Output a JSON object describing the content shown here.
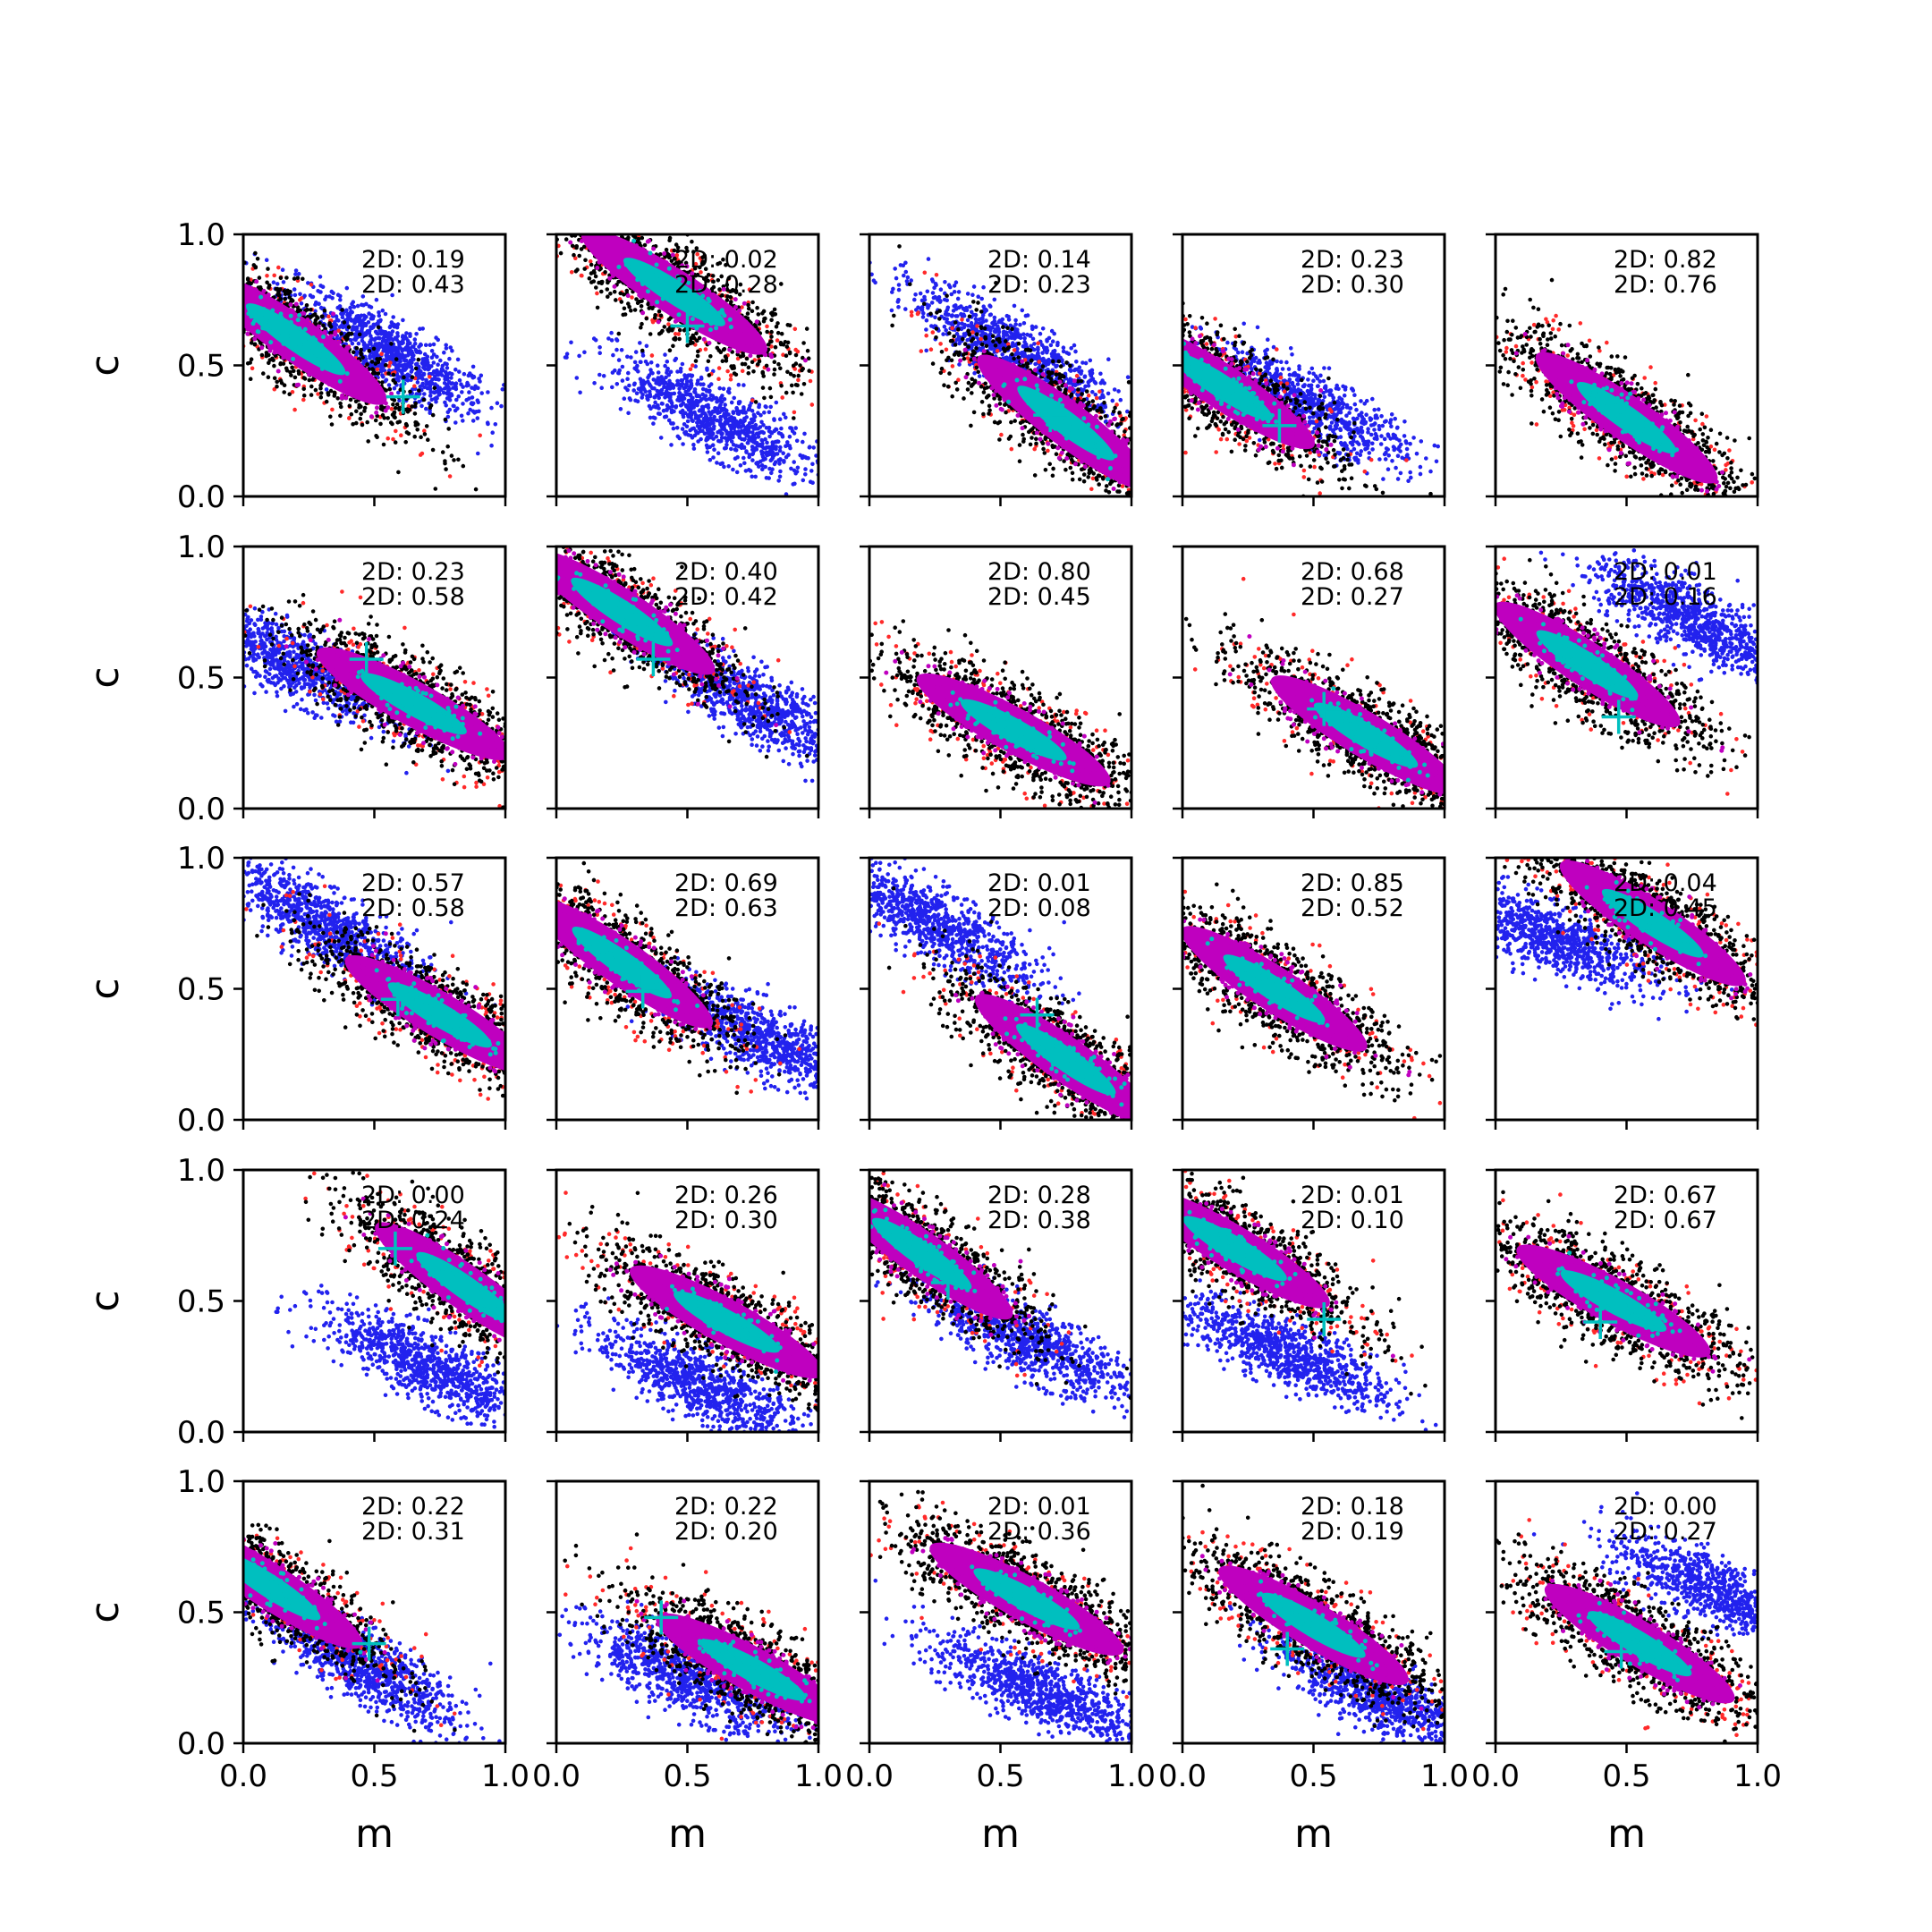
{
  "chart_data": {
    "type": "scatter",
    "layout": {
      "rows": 5,
      "cols": 5
    },
    "xlabel": "m",
    "ylabel": "c",
    "xlim": [
      0.0,
      1.0
    ],
    "ylim": [
      0.0,
      1.0
    ],
    "xticks": [
      "0.0",
      "0.5",
      "1.0"
    ],
    "yticks": [
      "0.0",
      "0.5",
      "1.0"
    ],
    "grid": false,
    "colors": {
      "outer": "#ff2a2a",
      "band": "#000000",
      "mid": "#bf00bf",
      "core": "#00bfbf",
      "alt": "#2222ee",
      "marker": "#00bfbf"
    },
    "panels": [
      {
        "row": 0,
        "col": 0,
        "annot": [
          "2D: 0.19",
          "2D: 0.43"
        ],
        "main": {
          "m": 0.2,
          "c": 0.6,
          "slope": -0.7
        },
        "alt": {
          "m": 0.55,
          "c": 0.55,
          "slope": -0.6
        },
        "marker": [
          0.61,
          0.38
        ]
      },
      {
        "row": 0,
        "col": 1,
        "annot": [
          "2D: 0.02",
          "2D: 0.28"
        ],
        "main": {
          "m": 0.45,
          "c": 0.78,
          "slope": -0.65
        },
        "alt": {
          "m": 0.6,
          "c": 0.3,
          "slope": -0.55
        },
        "marker": [
          0.5,
          0.65
        ]
      },
      {
        "row": 0,
        "col": 2,
        "annot": [
          "2D: 0.14",
          "2D: 0.23"
        ],
        "main": {
          "m": 0.75,
          "c": 0.28,
          "slope": -0.75
        },
        "alt": {
          "m": 0.55,
          "c": 0.55,
          "slope": -0.6
        },
        "marker": [
          0.69,
          0.31
        ]
      },
      {
        "row": 0,
        "col": 3,
        "annot": [
          "2D: 0.23",
          "2D: 0.30"
        ],
        "main": {
          "m": 0.15,
          "c": 0.42,
          "slope": -0.65
        },
        "alt": {
          "m": 0.45,
          "c": 0.36,
          "slope": -0.5
        },
        "marker": [
          0.37,
          0.27
        ]
      },
      {
        "row": 0,
        "col": 4,
        "annot": [
          "2D: 0.82",
          "2D: 0.76"
        ],
        "main": {
          "m": 0.5,
          "c": 0.3,
          "slope": -0.7
        },
        "alt": null,
        "marker": null
      },
      {
        "row": 1,
        "col": 0,
        "annot": [
          "2D: 0.23",
          "2D: 0.58"
        ],
        "main": {
          "m": 0.65,
          "c": 0.4,
          "slope": -0.55
        },
        "alt": {
          "m": 0.2,
          "c": 0.55,
          "slope": -0.5
        },
        "marker": [
          0.47,
          0.57
        ]
      },
      {
        "row": 1,
        "col": 1,
        "annot": [
          "2D: 0.40",
          "2D: 0.42"
        ],
        "main": {
          "m": 0.25,
          "c": 0.75,
          "slope": -0.65
        },
        "alt": {
          "m": 0.75,
          "c": 0.4,
          "slope": -0.6
        },
        "marker": [
          0.37,
          0.57
        ]
      },
      {
        "row": 1,
        "col": 2,
        "annot": [
          "2D: 0.80",
          "2D: 0.45"
        ],
        "main": {
          "m": 0.55,
          "c": 0.3,
          "slope": -0.55
        },
        "alt": null,
        "marker": null
      },
      {
        "row": 1,
        "col": 3,
        "annot": [
          "2D: 0.68",
          "2D: 0.27"
        ],
        "main": {
          "m": 0.7,
          "c": 0.28,
          "slope": -0.6
        },
        "alt": null,
        "marker": [
          0.54,
          0.38
        ]
      },
      {
        "row": 1,
        "col": 4,
        "annot": [
          "2D: 0.01",
          "2D: 0.16"
        ],
        "main": {
          "m": 0.35,
          "c": 0.55,
          "slope": -0.65
        },
        "alt": {
          "m": 0.75,
          "c": 0.72,
          "slope": -0.55
        },
        "marker": [
          0.47,
          0.35
        ]
      },
      {
        "row": 2,
        "col": 0,
        "annot": [
          "2D: 0.57",
          "2D: 0.58"
        ],
        "main": {
          "m": 0.75,
          "c": 0.4,
          "slope": -0.6
        },
        "alt": {
          "m": 0.3,
          "c": 0.75,
          "slope": -0.6
        },
        "marker": [
          0.59,
          0.46
        ]
      },
      {
        "row": 2,
        "col": 1,
        "annot": [
          "2D: 0.69",
          "2D: 0.63"
        ],
        "main": {
          "m": 0.25,
          "c": 0.6,
          "slope": -0.7
        },
        "alt": {
          "m": 0.8,
          "c": 0.3,
          "slope": -0.5
        },
        "marker": [
          0.33,
          0.49
        ]
      },
      {
        "row": 2,
        "col": 2,
        "annot": [
          "2D: 0.01",
          "2D: 0.08"
        ],
        "main": {
          "m": 0.75,
          "c": 0.23,
          "slope": -0.7
        },
        "alt": {
          "m": 0.25,
          "c": 0.75,
          "slope": -0.6
        },
        "marker": [
          0.64,
          0.4
        ]
      },
      {
        "row": 2,
        "col": 3,
        "annot": [
          "2D: 0.85",
          "2D: 0.52"
        ],
        "main": {
          "m": 0.35,
          "c": 0.5,
          "slope": -0.65
        },
        "alt": null,
        "marker": null
      },
      {
        "row": 2,
        "col": 4,
        "annot": [
          "2D: 0.04",
          "2D: 0.45"
        ],
        "main": {
          "m": 0.6,
          "c": 0.75,
          "slope": -0.65
        },
        "alt": {
          "m": 0.2,
          "c": 0.7,
          "slope": -0.4
        },
        "marker": null
      },
      {
        "row": 3,
        "col": 0,
        "annot": [
          "2D: 0.00",
          "2D: 0.24"
        ],
        "main": {
          "m": 0.85,
          "c": 0.55,
          "slope": -0.7
        },
        "alt": {
          "m": 0.7,
          "c": 0.25,
          "slope": -0.5
        },
        "marker": [
          0.58,
          0.7
        ]
      },
      {
        "row": 3,
        "col": 1,
        "annot": [
          "2D: 0.26",
          "2D: 0.30"
        ],
        "main": {
          "m": 0.65,
          "c": 0.42,
          "slope": -0.55
        },
        "alt": {
          "m": 0.55,
          "c": 0.18,
          "slope": -0.5
        },
        "marker": null
      },
      {
        "row": 3,
        "col": 2,
        "annot": [
          "2D: 0.28",
          "2D: 0.38"
        ],
        "main": {
          "m": 0.2,
          "c": 0.68,
          "slope": -0.7
        },
        "alt": {
          "m": 0.6,
          "c": 0.35,
          "slope": -0.5
        },
        "marker": [
          0.3,
          0.57
        ]
      },
      {
        "row": 3,
        "col": 3,
        "annot": [
          "2D: 0.01",
          "2D: 0.10"
        ],
        "main": {
          "m": 0.2,
          "c": 0.7,
          "slope": -0.6
        },
        "alt": {
          "m": 0.4,
          "c": 0.3,
          "slope": -0.45
        },
        "marker": [
          0.54,
          0.43
        ]
      },
      {
        "row": 3,
        "col": 4,
        "annot": [
          "2D: 0.67",
          "2D: 0.67"
        ],
        "main": {
          "m": 0.45,
          "c": 0.5,
          "slope": -0.55
        },
        "alt": null,
        "marker": [
          0.4,
          0.42
        ]
      },
      {
        "row": 4,
        "col": 0,
        "annot": [
          "2D: 0.22",
          "2D: 0.31"
        ],
        "main": {
          "m": 0.1,
          "c": 0.6,
          "slope": -0.65
        },
        "alt": {
          "m": 0.45,
          "c": 0.3,
          "slope": -0.6
        },
        "marker": [
          0.48,
          0.38
        ]
      },
      {
        "row": 4,
        "col": 1,
        "annot": [
          "2D: 0.22",
          "2D: 0.20"
        ],
        "main": {
          "m": 0.75,
          "c": 0.28,
          "slope": -0.55
        },
        "alt": {
          "m": 0.5,
          "c": 0.25,
          "slope": -0.45
        },
        "marker": [
          0.4,
          0.48
        ]
      },
      {
        "row": 4,
        "col": 2,
        "annot": [
          "2D: 0.01",
          "2D: 0.36"
        ],
        "main": {
          "m": 0.6,
          "c": 0.55,
          "slope": -0.55
        },
        "alt": {
          "m": 0.65,
          "c": 0.2,
          "slope": -0.45
        },
        "marker": null
      },
      {
        "row": 4,
        "col": 3,
        "annot": [
          "2D: 0.18",
          "2D: 0.19"
        ],
        "main": {
          "m": 0.5,
          "c": 0.45,
          "slope": -0.6
        },
        "alt": {
          "m": 0.75,
          "c": 0.18,
          "slope": -0.5
        },
        "marker": [
          0.4,
          0.36
        ]
      },
      {
        "row": 4,
        "col": 4,
        "annot": [
          "2D: 0.00",
          "2D: 0.27"
        ],
        "main": {
          "m": 0.55,
          "c": 0.38,
          "slope": -0.6
        },
        "alt": {
          "m": 0.85,
          "c": 0.58,
          "slope": -0.45
        },
        "marker": [
          0.48,
          0.35
        ]
      }
    ]
  }
}
